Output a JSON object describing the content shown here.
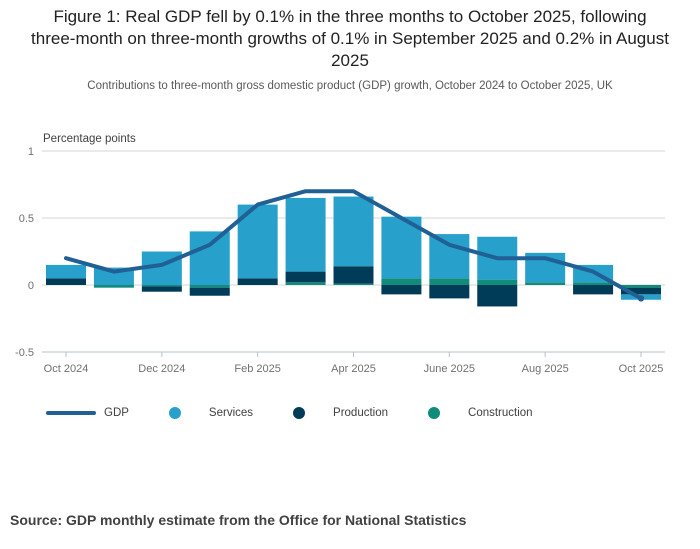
{
  "title": "Figure 1: Real GDP fell by 0.1% in the three months to October 2025, following three-month on three-month growths of 0.1% in September 2025 and 0.2% in August 2025",
  "subtitle": "Contributions to three-month gross domestic product (GDP) growth, October 2024 to October 2025, UK",
  "source": "Source: GDP monthly estimate from the Office for National Statistics",
  "chart_data": {
    "type": "bar",
    "subtype": "stacked-bars-with-line",
    "axis_title": "Percentage points",
    "categories": [
      "Oct 2024",
      "Nov 2024",
      "Dec 2024",
      "Jan 2025",
      "Feb 2025",
      "Mar 2025",
      "Apr 2025",
      "May 2025",
      "Jun 2025",
      "Jul 2025",
      "Aug 2025",
      "Sep 2025",
      "Oct 2025"
    ],
    "x_tick_labels": [
      "Oct 2024",
      "Dec 2024",
      "Feb 2025",
      "Apr 2025",
      "June 2025",
      "Aug 2025",
      "Oct 2025"
    ],
    "x_tick_indices": [
      0,
      2,
      4,
      6,
      8,
      10,
      12
    ],
    "ylim": [
      -0.5,
      1
    ],
    "y_ticks": [
      1,
      0.5,
      0,
      -0.5
    ],
    "y_tick_labels": [
      "1",
      "0.5",
      "0",
      "-0.5"
    ],
    "grid": true,
    "legend_position": "bottom",
    "stack_order_from_zero": [
      "Construction",
      "Production",
      "Services"
    ],
    "bar_series": [
      {
        "name": "Services",
        "color": "#27A0CC",
        "values": [
          0.1,
          0.13,
          0.25,
          0.4,
          0.55,
          0.55,
          0.52,
          0.46,
          0.33,
          0.32,
          0.22,
          0.13,
          -0.04
        ]
      },
      {
        "name": "Production",
        "color": "#003C57",
        "values": [
          0.05,
          0.0,
          -0.04,
          -0.06,
          0.05,
          0.08,
          0.13,
          -0.07,
          -0.1,
          -0.16,
          0.0,
          -0.07,
          -0.05
        ]
      },
      {
        "name": "Construction",
        "color": "#118C7B",
        "values": [
          0.0,
          -0.02,
          -0.01,
          -0.02,
          0.0,
          0.02,
          0.01,
          0.05,
          0.05,
          0.04,
          0.02,
          0.02,
          -0.02
        ]
      }
    ],
    "line_series": {
      "name": "GDP",
      "color": "#206095",
      "values": [
        0.2,
        0.1,
        0.15,
        0.3,
        0.6,
        0.7,
        0.7,
        0.5,
        0.3,
        0.2,
        0.2,
        0.1,
        -0.1
      ]
    }
  },
  "legend": {
    "items": [
      {
        "label": "GDP",
        "swatch": "line",
        "color": "#206095"
      },
      {
        "label": "Services",
        "swatch": "circle",
        "color": "#27A0CC"
      },
      {
        "label": "Production",
        "swatch": "circle",
        "color": "#003C57"
      },
      {
        "label": "Construction",
        "swatch": "circle",
        "color": "#118C7B"
      }
    ]
  },
  "colors": {
    "gdp_line": "#206095",
    "services": "#27A0CC",
    "production": "#003C57",
    "construction": "#118C7B",
    "gridline": "#D6D6D6",
    "axis": "#B3C2CE",
    "tick_text": "#707071",
    "title_text": "#222222"
  }
}
